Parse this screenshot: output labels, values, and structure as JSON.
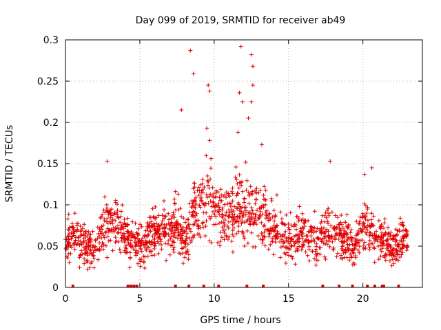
{
  "chart_data": {
    "type": "scatter",
    "title": "Day 099 of 2019, SRMTID for receiver ab49",
    "xlabel": "GPS time / hours",
    "ylabel": "SRMTID / TECUs",
    "xlim": [
      0,
      24
    ],
    "ylim": [
      0,
      0.3
    ],
    "grid": true,
    "x_ticks": [
      "0",
      "5",
      "10",
      "15",
      "20"
    ],
    "x_tick_values": [
      0,
      5,
      10,
      15,
      20
    ],
    "y_ticks": [
      "0",
      "0.05",
      "0.1",
      "0.15",
      "0.2",
      "0.25",
      "0.3"
    ],
    "y_tick_values": [
      0,
      0.05,
      0.1,
      0.15,
      0.2,
      0.25,
      0.3
    ],
    "series": [
      {
        "name": "SRMTID",
        "color": "#e00000",
        "marker": "plus",
        "profile": {
          "hours": [
            0.0,
            0.5,
            1.0,
            1.5,
            2.0,
            2.5,
            3.0,
            3.5,
            4.0,
            4.5,
            5.0,
            5.5,
            6.0,
            6.5,
            7.0,
            7.5,
            8.0,
            8.5,
            9.0,
            9.5,
            10.0,
            10.5,
            11.0,
            11.5,
            12.0,
            12.5,
            13.0,
            13.5,
            14.0,
            14.5,
            15.0,
            15.5,
            16.0,
            16.5,
            17.0,
            17.5,
            18.0,
            18.5,
            19.0,
            19.5,
            20.0,
            20.5,
            21.0,
            21.5,
            22.0,
            22.5,
            23.0
          ],
          "median_tecu": [
            0.06,
            0.06,
            0.055,
            0.05,
            0.045,
            0.075,
            0.08,
            0.075,
            0.06,
            0.055,
            0.05,
            0.06,
            0.07,
            0.065,
            0.07,
            0.08,
            0.05,
            0.09,
            0.1,
            0.11,
            0.095,
            0.08,
            0.085,
            0.09,
            0.1,
            0.09,
            0.085,
            0.085,
            0.07,
            0.065,
            0.06,
            0.06,
            0.065,
            0.06,
            0.055,
            0.07,
            0.07,
            0.06,
            0.055,
            0.05,
            0.075,
            0.07,
            0.06,
            0.055,
            0.05,
            0.055,
            0.06
          ],
          "spread_tecu": [
            0.025,
            0.025,
            0.025,
            0.025,
            0.02,
            0.03,
            0.03,
            0.03,
            0.025,
            0.025,
            0.025,
            0.025,
            0.025,
            0.025,
            0.03,
            0.035,
            0.025,
            0.04,
            0.045,
            0.045,
            0.04,
            0.035,
            0.035,
            0.04,
            0.045,
            0.04,
            0.035,
            0.035,
            0.03,
            0.025,
            0.025,
            0.025,
            0.025,
            0.025,
            0.025,
            0.03,
            0.03,
            0.025,
            0.025,
            0.02,
            0.03,
            0.03,
            0.025,
            0.025,
            0.025,
            0.025,
            0.02
          ]
        },
        "peak_points": [
          {
            "x": 8.4,
            "y": 0.287
          },
          {
            "x": 8.6,
            "y": 0.259
          },
          {
            "x": 7.8,
            "y": 0.215
          },
          {
            "x": 9.6,
            "y": 0.245
          },
          {
            "x": 9.7,
            "y": 0.238
          },
          {
            "x": 9.5,
            "y": 0.193
          },
          {
            "x": 9.7,
            "y": 0.178
          },
          {
            "x": 11.8,
            "y": 0.292
          },
          {
            "x": 12.5,
            "y": 0.282
          },
          {
            "x": 12.6,
            "y": 0.268
          },
          {
            "x": 12.6,
            "y": 0.245
          },
          {
            "x": 11.7,
            "y": 0.236
          },
          {
            "x": 11.9,
            "y": 0.225
          },
          {
            "x": 12.5,
            "y": 0.225
          },
          {
            "x": 12.3,
            "y": 0.205
          },
          {
            "x": 11.6,
            "y": 0.188
          },
          {
            "x": 13.2,
            "y": 0.173
          },
          {
            "x": 17.8,
            "y": 0.153
          },
          {
            "x": 2.8,
            "y": 0.153
          },
          {
            "x": 20.6,
            "y": 0.145
          },
          {
            "x": 20.1,
            "y": 0.137
          }
        ],
        "n_points": 1650,
        "seed": 99
      }
    ],
    "gap_markers_hours": [
      0.5,
      4.2,
      4.4,
      4.6,
      4.8,
      7.4,
      8.3,
      9.3,
      10.3,
      12.2,
      13.3,
      17.3,
      18.4,
      19.3,
      20.3,
      20.8,
      21.3,
      21.4,
      22.4
    ]
  }
}
